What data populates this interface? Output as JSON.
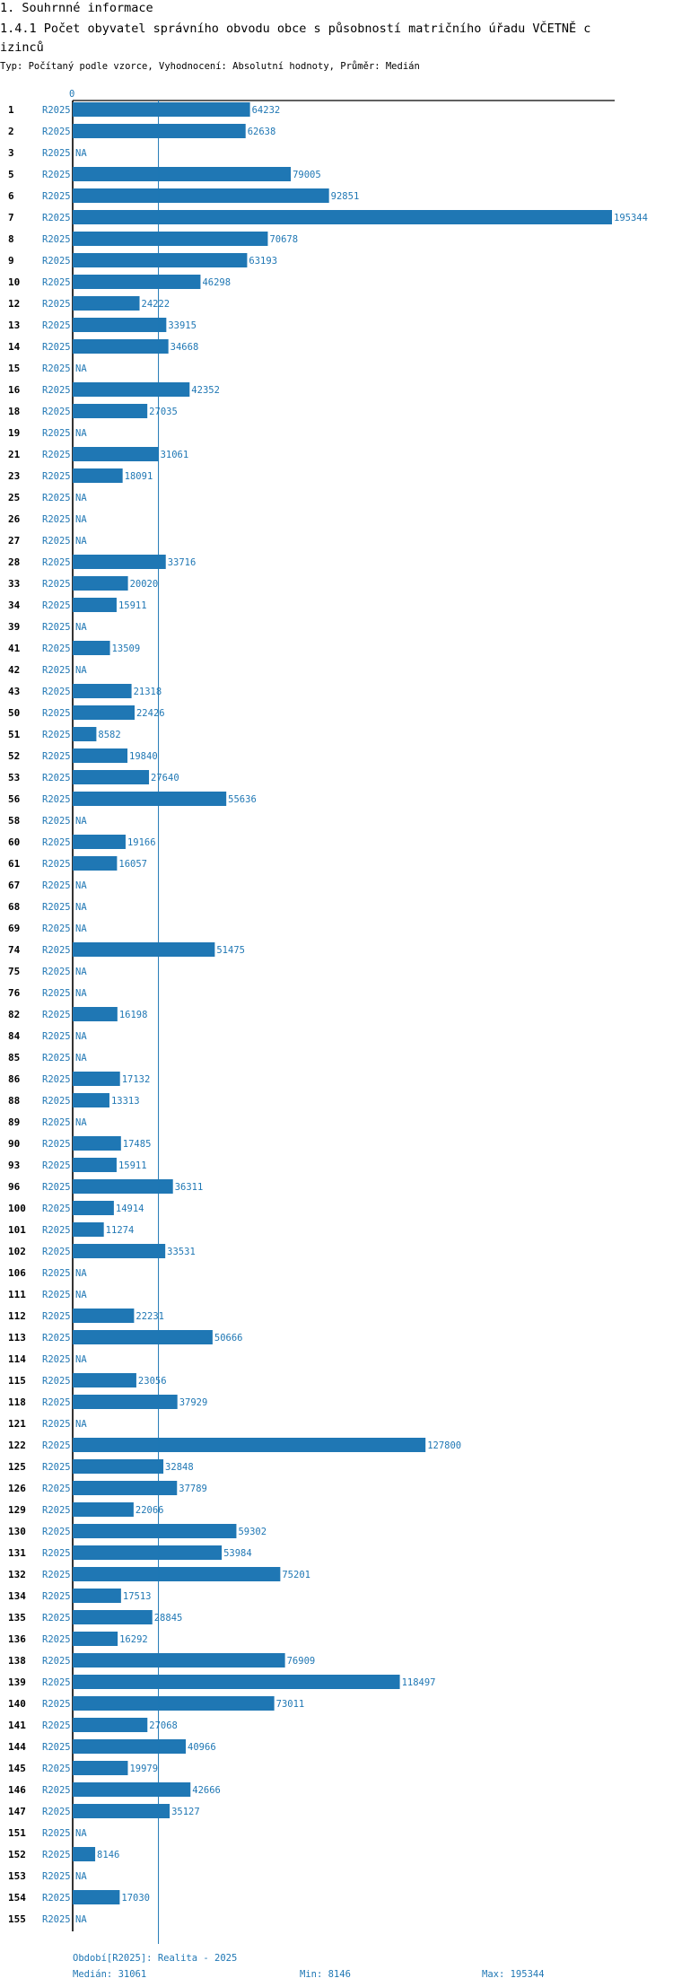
{
  "section_heading": "1. Souhrnné informace",
  "chart_title_line1": "1.4.1 Počet obyvatel správního obvodu obce s působností matričního úřadu VČETNĚ c",
  "chart_title_line2": "izinců",
  "chart_subtitle": "Typ: Počítaný podle vzorce, Vyhodnocení: Absolutní hodnoty, Průměr: Medián",
  "chart_data": {
    "type": "bar",
    "orientation": "horizontal",
    "title": "1.4.1 Počet obyvatel správního obvodu obce s působností matričního úřadu VČETNĚ cizinců",
    "xlabel": "",
    "ylabel": "",
    "axis_zero_label": "0",
    "xlim": [
      0,
      195344
    ],
    "period_label": "R2025",
    "missing_label": "NA",
    "reference_line": {
      "name": "Medián",
      "value": 31061
    },
    "categories": [
      "1",
      "2",
      "3",
      "5",
      "6",
      "7",
      "8",
      "9",
      "10",
      "12",
      "13",
      "14",
      "15",
      "16",
      "18",
      "19",
      "21",
      "23",
      "25",
      "26",
      "27",
      "28",
      "33",
      "34",
      "39",
      "41",
      "42",
      "43",
      "50",
      "51",
      "52",
      "53",
      "56",
      "58",
      "60",
      "61",
      "67",
      "68",
      "69",
      "74",
      "75",
      "76",
      "82",
      "84",
      "85",
      "86",
      "88",
      "89",
      "90",
      "93",
      "96",
      "100",
      "101",
      "102",
      "106",
      "111",
      "112",
      "113",
      "114",
      "115",
      "118",
      "121",
      "122",
      "125",
      "126",
      "129",
      "130",
      "131",
      "132",
      "134",
      "135",
      "136",
      "138",
      "139",
      "140",
      "141",
      "144",
      "145",
      "146",
      "147",
      "151",
      "152",
      "153",
      "154",
      "155"
    ],
    "values": [
      64232,
      62638,
      null,
      79005,
      92851,
      195344,
      70678,
      63193,
      46298,
      24222,
      33915,
      34668,
      null,
      42352,
      27035,
      null,
      31061,
      18091,
      null,
      null,
      null,
      33716,
      20020,
      15911,
      null,
      13509,
      null,
      21318,
      22426,
      8582,
      19840,
      27640,
      55636,
      null,
      19166,
      16057,
      null,
      null,
      null,
      51475,
      null,
      null,
      16198,
      null,
      null,
      17132,
      13313,
      null,
      17485,
      15911,
      36311,
      14914,
      11274,
      33531,
      null,
      null,
      22231,
      50666,
      null,
      23056,
      37929,
      null,
      127800,
      32848,
      37789,
      22066,
      59302,
      53984,
      75201,
      17513,
      28845,
      16292,
      76909,
      118497,
      73011,
      27068,
      40966,
      19979,
      42666,
      35127,
      null,
      8146,
      null,
      17030,
      null
    ],
    "footer": {
      "period": "Období[R2025]: Realita - 2025",
      "median": "Medián: 31061",
      "min": "Min: 8146",
      "max": "Max: 195344"
    },
    "colors": {
      "bar": "#1f77b4",
      "text_accent": "#1f77b4",
      "axis": "#000000"
    }
  }
}
